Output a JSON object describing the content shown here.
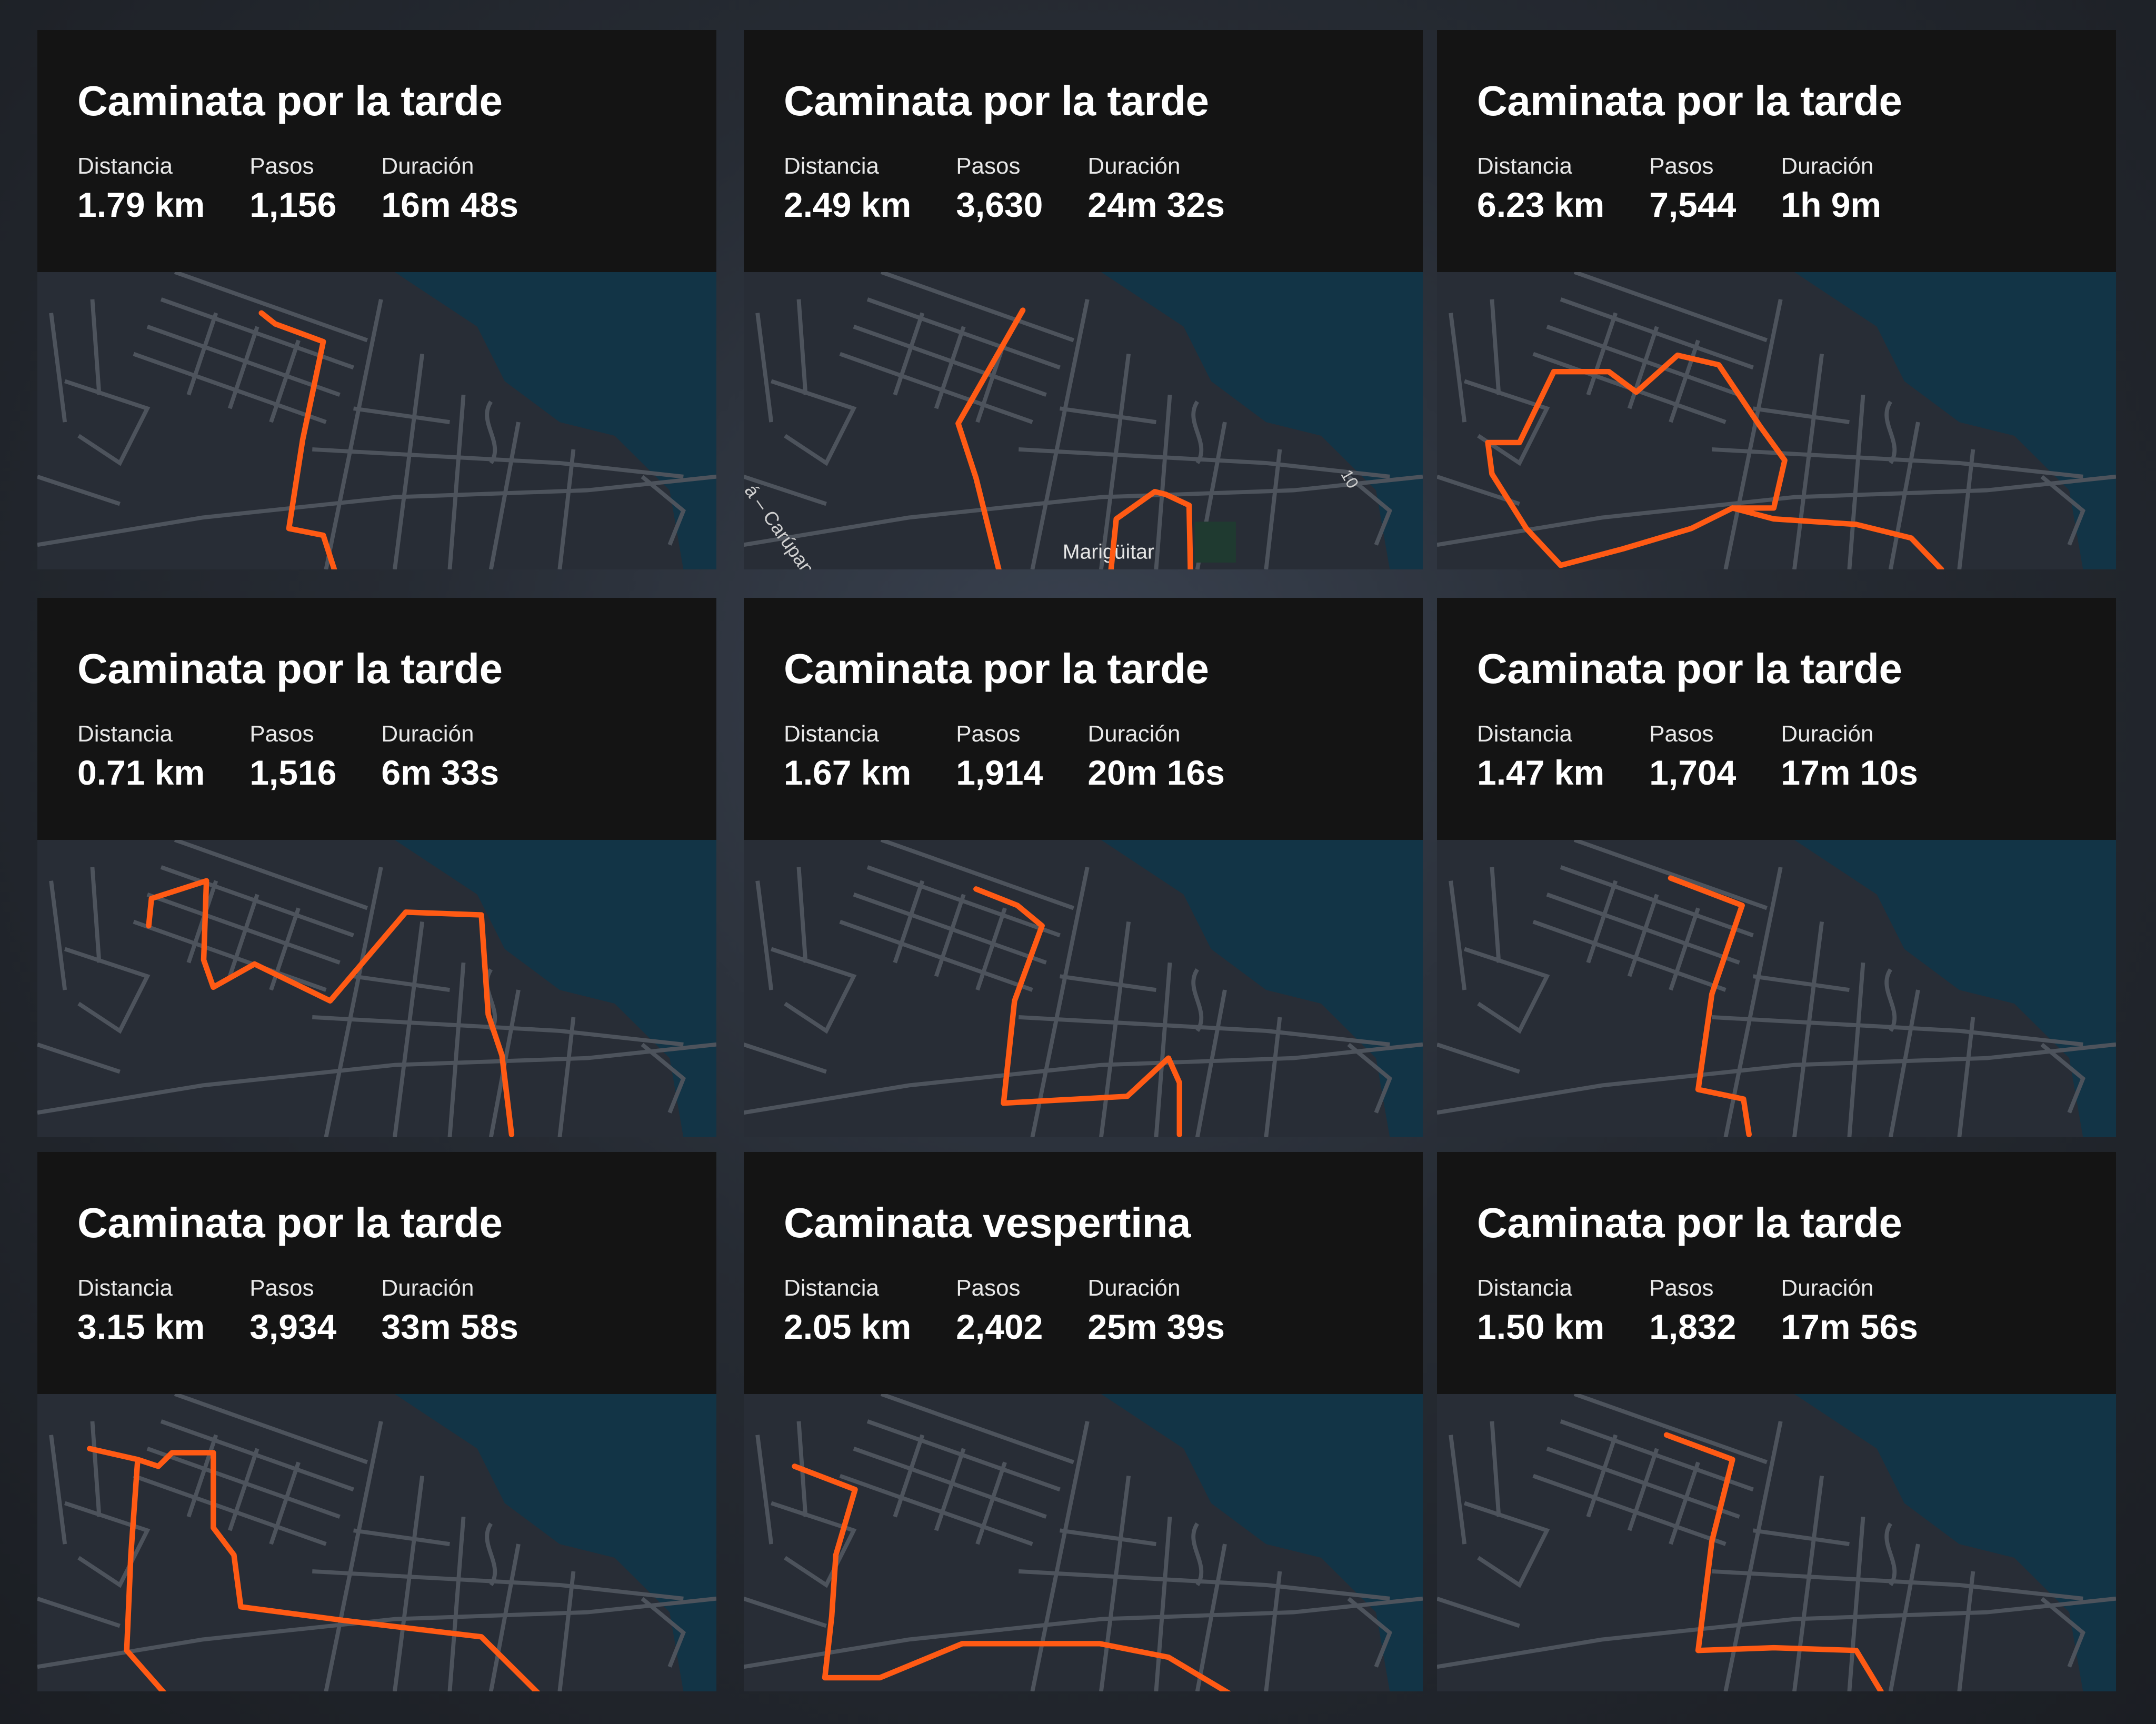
{
  "labels": {
    "distance": "Distancia",
    "steps": "Pasos",
    "duration": "Duración"
  },
  "colors": {
    "route": "#ff5a14",
    "map_land": "#282d36",
    "map_water": "#123446",
    "map_roads": "#4d535c",
    "card_header": "#141414"
  },
  "activities": [
    {
      "title": "Caminata por la tarde",
      "distance": "1.79 km",
      "steps": "1,156",
      "duration": "16m 48s"
    },
    {
      "title": "Caminata por la tarde",
      "distance": "2.49 km",
      "steps": "3,630",
      "duration": "24m 32s",
      "map_labels": [
        "Marigüitar",
        "á – Carúpano",
        "10"
      ]
    },
    {
      "title": "Caminata por la tarde",
      "distance": "6.23 km",
      "steps": "7,544",
      "duration": "1h 9m"
    },
    {
      "title": "Caminata por la tarde",
      "distance": "0.71 km",
      "steps": "1,516",
      "duration": "6m 33s"
    },
    {
      "title": "Caminata por la tarde",
      "distance": "1.67 km",
      "steps": "1,914",
      "duration": "20m 16s"
    },
    {
      "title": "Caminata por la tarde",
      "distance": "1.47 km",
      "steps": "1,704",
      "duration": "17m 10s"
    },
    {
      "title": "Caminata por la tarde",
      "distance": "3.15 km",
      "steps": "3,934",
      "duration": "33m 58s"
    },
    {
      "title": "Caminata vespertina",
      "distance": "2.05 km",
      "steps": "2,402",
      "duration": "25m 39s"
    },
    {
      "title": "Caminata por la tarde",
      "distance": "1.50 km",
      "steps": "1,832",
      "duration": "17m 56s"
    }
  ]
}
